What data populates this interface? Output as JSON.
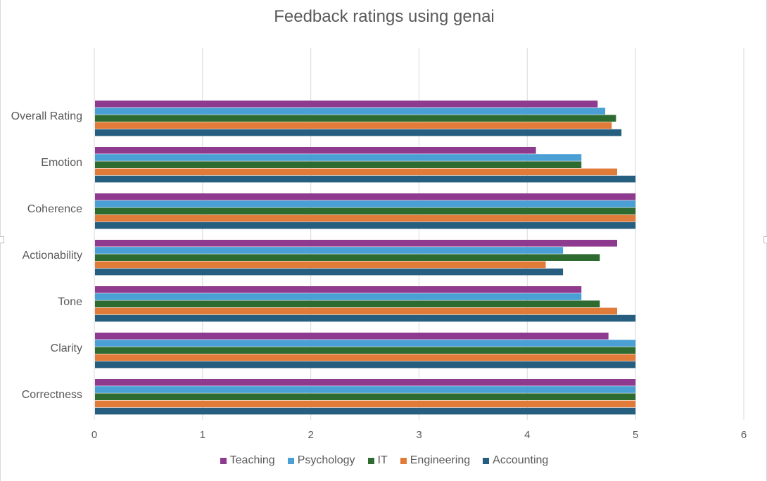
{
  "chart_data": {
    "type": "bar",
    "orientation": "horizontal",
    "title": "Feedback ratings using genai",
    "xlabel": "",
    "ylabel": "",
    "xlim": [
      0,
      6
    ],
    "x_ticks": [
      0,
      1,
      2,
      3,
      4,
      5,
      6
    ],
    "grid": "vertical",
    "legend_position": "bottom",
    "categories": [
      "Correctness",
      "Clarity",
      "Tone",
      "Actionability",
      "Coherence",
      "Emotion",
      "Overall Rating"
    ],
    "series": [
      {
        "name": "Accounting",
        "color": "#255E7E",
        "values": [
          5,
          5,
          5,
          4.33,
          5,
          5,
          4.87
        ]
      },
      {
        "name": "Engineering",
        "color": "#E07B39",
        "values": [
          5,
          5,
          4.83,
          4.17,
          5,
          4.83,
          4.78
        ]
      },
      {
        "name": "IT",
        "color": "#2E6B30",
        "values": [
          5,
          5,
          4.67,
          4.67,
          5,
          4.5,
          4.82
        ]
      },
      {
        "name": "Psychology",
        "color": "#4A9FD5",
        "values": [
          5,
          5,
          4.5,
          4.33,
          5,
          4.5,
          4.72
        ]
      },
      {
        "name": "Teaching",
        "color": "#8E3A8E",
        "values": [
          5,
          4.75,
          4.5,
          4.83,
          5,
          4.08,
          4.65
        ]
      }
    ],
    "legend_order": [
      "Teaching",
      "Psychology",
      "IT",
      "Engineering",
      "Accounting"
    ]
  }
}
